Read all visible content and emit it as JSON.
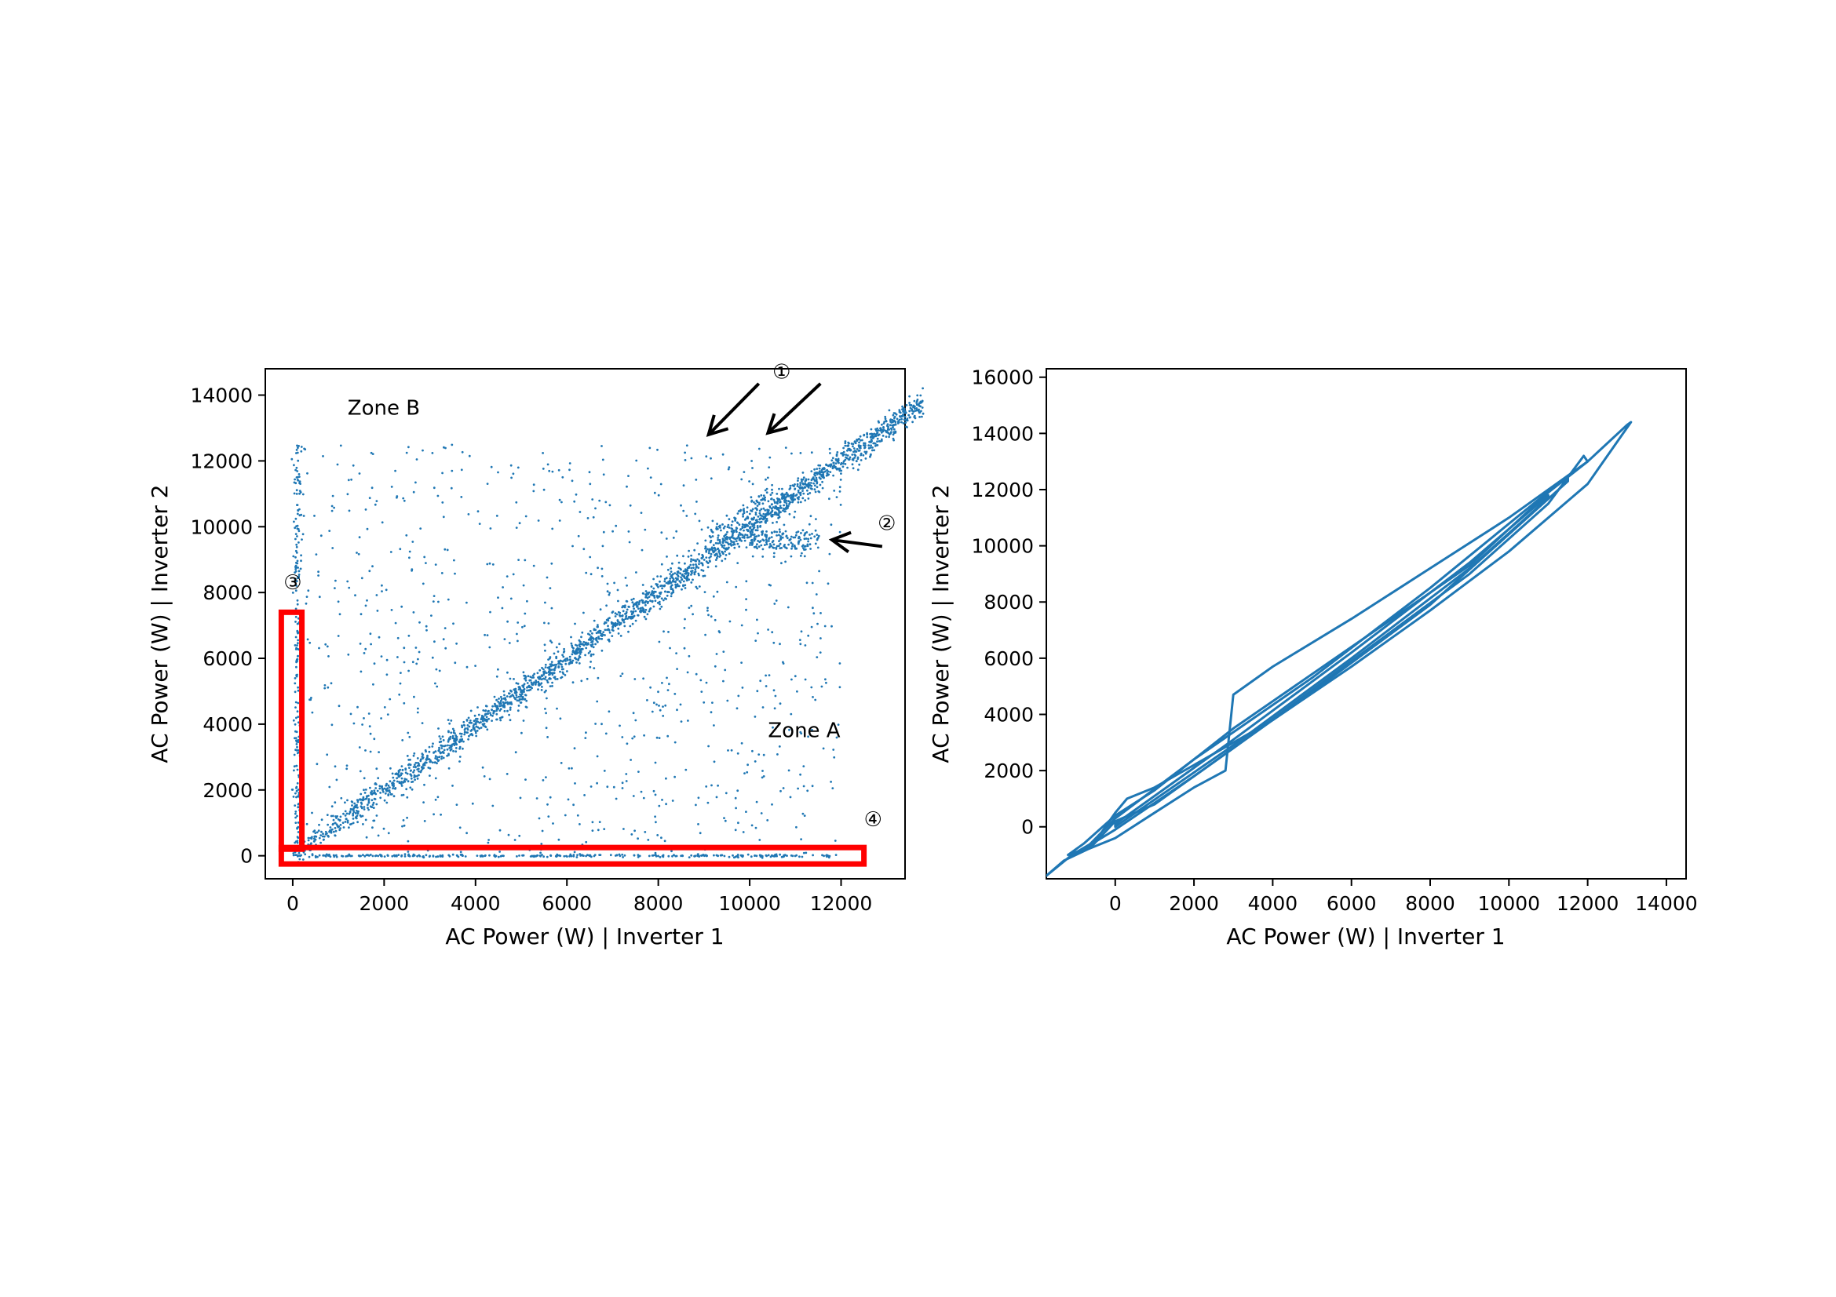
{
  "chart_data": [
    {
      "type": "scatter",
      "xlabel": "AC Power (W) | Inverter 1",
      "ylabel": "AC Power (W) | Inverter 2",
      "xlim": [
        -600,
        13400
      ],
      "ylim": [
        -700,
        14800
      ],
      "xticks": [
        0,
        2000,
        4000,
        6000,
        8000,
        10000,
        12000
      ],
      "yticks": [
        0,
        2000,
        4000,
        6000,
        8000,
        10000,
        12000,
        14000
      ],
      "grid": false,
      "color": "#1f77b4",
      "highlight_color": "#ff0000",
      "annotations": [
        {
          "text": "Zone B",
          "x": 1200,
          "y": 13400
        },
        {
          "text": "Zone A",
          "x": 10400,
          "y": 3600
        },
        {
          "text": "①",
          "x": 10500,
          "y": 14500
        },
        {
          "text": "②",
          "x": 12800,
          "y": 9900
        },
        {
          "text": "③",
          "x": -200,
          "y": 8100
        },
        {
          "text": "④",
          "x": 12500,
          "y": 900
        }
      ],
      "arrows": [
        {
          "from": [
            10200,
            14350
          ],
          "to": [
            9100,
            12800
          ]
        },
        {
          "from": [
            11550,
            14350
          ],
          "to": [
            10400,
            12850
          ]
        },
        {
          "from": [
            12900,
            9400
          ],
          "to": [
            11800,
            9600
          ]
        }
      ],
      "highlight_boxes": [
        {
          "x": [
            -250,
            200
          ],
          "y": [
            200,
            7400
          ]
        },
        {
          "x": [
            -250,
            12500
          ],
          "y": [
            -250,
            250
          ]
        }
      ],
      "point_groups": [
        {
          "name": "diagonal",
          "x_range": [
            0,
            13800
          ],
          "slope": 1.0,
          "spread": 200,
          "count": 2200
        },
        {
          "name": "scatter",
          "x_range": [
            0,
            12000
          ],
          "y_range": [
            0,
            12500
          ],
          "count": 900
        },
        {
          "name": "band_2",
          "x_range": [
            10000,
            11500
          ],
          "y_range": [
            9300,
            9900
          ],
          "count": 150
        },
        {
          "name": "band_1",
          "x_range": [
            9000,
            10500
          ],
          "offset": 600,
          "count": 80
        },
        {
          "name": "vertical_3",
          "x": 100,
          "y_range": [
            0,
            12500
          ],
          "count": 200
        },
        {
          "name": "horizontal_4",
          "y": 0,
          "x_range": [
            0,
            12000
          ],
          "count": 300
        }
      ]
    },
    {
      "type": "contour",
      "xlabel": "AC Power (W) | Inverter 1",
      "ylabel": "AC Power (W) | Inverter 2",
      "xlim": [
        -1750,
        14500
      ],
      "ylim": [
        -1850,
        16300
      ],
      "xticks": [
        0,
        2000,
        4000,
        6000,
        8000,
        10000,
        12000,
        14000
      ],
      "yticks": [
        0,
        2000,
        4000,
        6000,
        8000,
        10000,
        12000,
        14000,
        16000
      ],
      "grid": false,
      "color": "#1f77b4",
      "contours": [
        [
          [
            -1800,
            -1800
          ],
          [
            -1100,
            -1000
          ],
          [
            -500,
            -500
          ],
          [
            0,
            500
          ],
          [
            300,
            1000
          ],
          [
            1000,
            1400
          ],
          [
            2000,
            2200
          ],
          [
            4000,
            3800
          ],
          [
            6000,
            5700
          ],
          [
            8000,
            7700
          ],
          [
            10000,
            9800
          ],
          [
            12000,
            12200
          ],
          [
            13100,
            14400
          ],
          [
            13000,
            14300
          ],
          [
            12000,
            13000
          ],
          [
            10000,
            11000
          ],
          [
            8000,
            9200
          ],
          [
            6000,
            7400
          ],
          [
            4000,
            5700
          ],
          [
            3000,
            4700
          ],
          [
            2800,
            2000
          ],
          [
            2000,
            1400
          ],
          [
            1000,
            500
          ],
          [
            0,
            -400
          ],
          [
            -700,
            -800
          ],
          [
            -1300,
            -1200
          ],
          [
            -1800,
            -1800
          ]
        ],
        [
          [
            -1200,
            -1000
          ],
          [
            -600,
            -700
          ],
          [
            0,
            200
          ],
          [
            1000,
            800
          ],
          [
            3000,
            2800
          ],
          [
            6000,
            5900
          ],
          [
            9000,
            9000
          ],
          [
            11000,
            11500
          ],
          [
            11900,
            13200
          ],
          [
            12000,
            13000
          ],
          [
            11000,
            11900
          ],
          [
            9000,
            9300
          ],
          [
            6000,
            6400
          ],
          [
            3000,
            3500
          ],
          [
            1000,
            1300
          ],
          [
            0,
            400
          ],
          [
            -800,
            -600
          ],
          [
            -1200,
            -1000
          ]
        ],
        [
          [
            -700,
            -700
          ],
          [
            0,
            -100
          ],
          [
            2000,
            1800
          ],
          [
            5000,
            4800
          ],
          [
            8000,
            7900
          ],
          [
            11500,
            12300
          ],
          [
            11500,
            12500
          ],
          [
            8000,
            8500
          ],
          [
            5000,
            5300
          ],
          [
            2000,
            2400
          ],
          [
            0,
            300
          ],
          [
            -700,
            -700
          ]
        ],
        [
          [
            0,
            0
          ],
          [
            3000,
            2900
          ],
          [
            6000,
            6000
          ],
          [
            9000,
            9200
          ],
          [
            11000,
            11700
          ],
          [
            11000,
            11800
          ],
          [
            9000,
            9400
          ],
          [
            6000,
            6200
          ],
          [
            3000,
            3100
          ],
          [
            0,
            100
          ]
        ]
      ]
    }
  ]
}
